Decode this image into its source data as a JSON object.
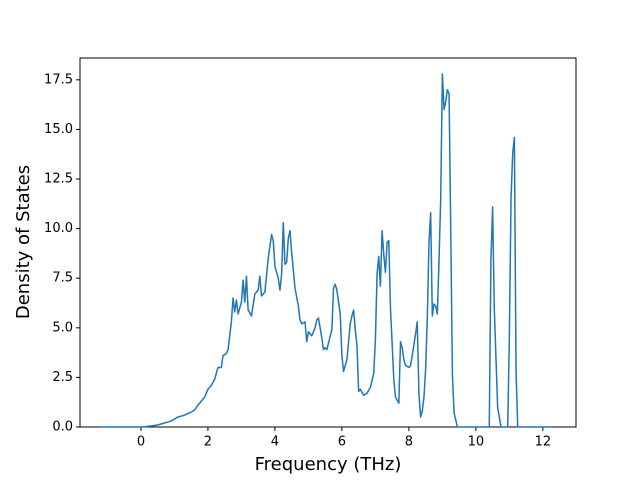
{
  "chart_data": {
    "type": "line",
    "xlabel": "Frequency (THz)",
    "ylabel": "Density of States",
    "xlim": [
      -1.82,
      12.99
    ],
    "ylim": [
      0,
      18.6
    ],
    "xticks": [
      0,
      2,
      4,
      6,
      8,
      10,
      12
    ],
    "yticks": [
      {
        "value": 0,
        "label": "0.0"
      },
      {
        "value": 2.5,
        "label": "2.5"
      },
      {
        "value": 5,
        "label": "5.0"
      },
      {
        "value": 7.5,
        "label": "7.5"
      },
      {
        "value": 10,
        "label": "10.0"
      },
      {
        "value": 12.5,
        "label": "12.5"
      },
      {
        "value": 15,
        "label": "15.0"
      },
      {
        "value": 17.5,
        "label": "17.5"
      }
    ],
    "series": [
      {
        "color": "#1f77b4",
        "x": [
          -1.2,
          0,
          0.3,
          0.5,
          0.7,
          0.9,
          1.0,
          1.1,
          1.3,
          1.5,
          1.6,
          1.7,
          1.8,
          1.9,
          2.0,
          2.1,
          2.2,
          2.3,
          2.4,
          2.45,
          2.55,
          2.6,
          2.7,
          2.75,
          2.8,
          2.85,
          2.9,
          3.0,
          3.05,
          3.1,
          3.15,
          3.2,
          3.3,
          3.4,
          3.5,
          3.55,
          3.6,
          3.7,
          3.8,
          3.9,
          3.95,
          4.0,
          4.1,
          4.15,
          4.2,
          4.25,
          4.3,
          4.35,
          4.4,
          4.45,
          4.5,
          4.6,
          4.7,
          4.75,
          4.8,
          4.9,
          4.95,
          5.0,
          5.1,
          5.2,
          5.25,
          5.3,
          5.4,
          5.45,
          5.5,
          5.55,
          5.7,
          5.75,
          5.8,
          5.85,
          5.95,
          6.0,
          6.05,
          6.15,
          6.25,
          6.3,
          6.35,
          6.4,
          6.45,
          6.5,
          6.55,
          6.65,
          6.75,
          6.85,
          6.95,
          7.0,
          7.05,
          7.1,
          7.15,
          7.2,
          7.25,
          7.3,
          7.35,
          7.4,
          7.45,
          7.55,
          7.6,
          7.7,
          7.75,
          7.8,
          7.85,
          7.9,
          8.0,
          8.05,
          8.1,
          8.2,
          8.25,
          8.3,
          8.35,
          8.4,
          8.45,
          8.5,
          8.55,
          8.6,
          8.65,
          8.7,
          8.75,
          8.8,
          8.85,
          8.9,
          8.95,
          9.0,
          9.05,
          9.1,
          9.15,
          9.2,
          9.25,
          9.3,
          9.35,
          9.45,
          10.4,
          10.45,
          10.5,
          10.55,
          10.65,
          10.75,
          10.95,
          11.0,
          11.05,
          11.1,
          11.15,
          11.2,
          11.25,
          12.3
        ],
        "values": [
          0,
          0,
          0.05,
          0.1,
          0.2,
          0.3,
          0.4,
          0.5,
          0.6,
          0.75,
          0.85,
          1.1,
          1.3,
          1.5,
          1.9,
          2.1,
          2.4,
          3.0,
          3.0,
          3.6,
          3.7,
          3.9,
          5.3,
          6.5,
          5.8,
          6.4,
          5.7,
          6.3,
          7.4,
          6.3,
          7.6,
          5.9,
          5.6,
          6.7,
          6.9,
          7.6,
          6.6,
          6.8,
          8.5,
          9.7,
          9.4,
          8.1,
          7.5,
          6.9,
          7.7,
          10.3,
          8.2,
          8.3,
          9.5,
          9.9,
          8.8,
          7.0,
          6.1,
          5.4,
          5.2,
          5.3,
          4.3,
          4.8,
          4.6,
          5.0,
          5.4,
          5.5,
          4.5,
          3.9,
          4.0,
          3.9,
          4.9,
          7.0,
          7.2,
          6.9,
          5.7,
          3.6,
          2.8,
          3.4,
          5.2,
          5.6,
          5.9,
          4.9,
          4.1,
          1.8,
          1.9,
          1.6,
          1.7,
          2.0,
          2.7,
          4.4,
          7.7,
          8.6,
          7.1,
          9.9,
          8.7,
          7.8,
          9.3,
          9.4,
          6.0,
          2.4,
          1.5,
          1.2,
          4.3,
          4.0,
          3.4,
          3.1,
          3.0,
          3.1,
          3.6,
          4.7,
          5.3,
          1.7,
          0.5,
          0.8,
          1.5,
          2.9,
          5.5,
          9.3,
          10.8,
          5.6,
          6.2,
          6.1,
          5.7,
          8.4,
          11.5,
          17.8,
          16.0,
          16.4,
          17.0,
          16.8,
          10.0,
          2.6,
          0.7,
          0,
          0,
          8.4,
          11.1,
          6.0,
          1.0,
          0,
          0,
          4.5,
          11.5,
          13.8,
          14.6,
          2.8,
          0,
          0
        ]
      }
    ]
  }
}
